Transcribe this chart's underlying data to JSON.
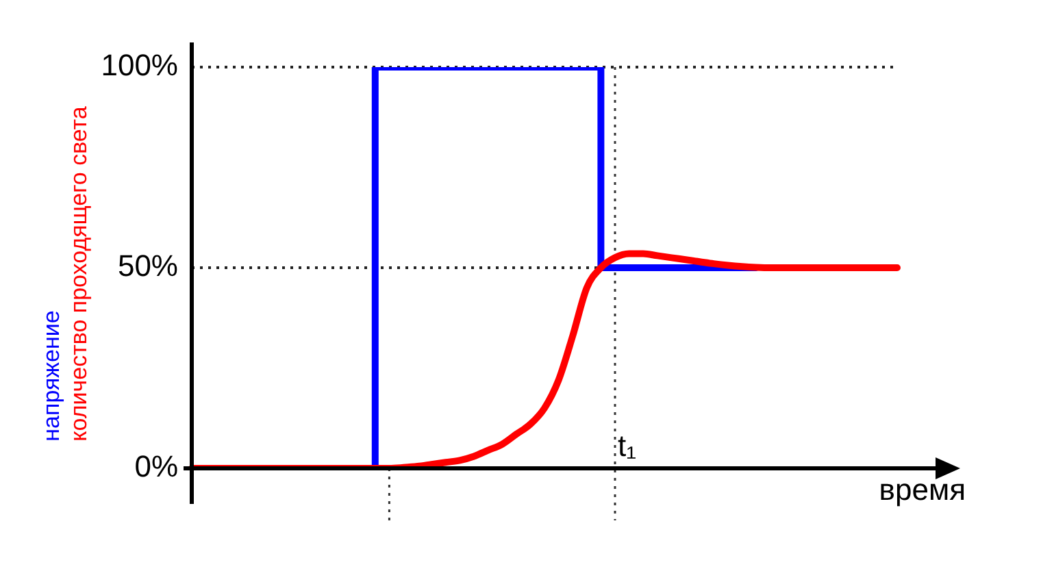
{
  "chart_data": {
    "type": "line",
    "annotations": [
      "время",
      "t₁"
    ],
    "categories": [
      null,
      null,
      null,
      null,
      null,
      null,
      null,
      null,
      null,
      null,
      null,
      null,
      null,
      null,
      null,
      null,
      null,
      null,
      null,
      null,
      null,
      null,
      null,
      null,
      null,
      null,
      null,
      null,
      null,
      null,
      null,
      null,
      null,
      null,
      null,
      null,
      null,
      null,
      null,
      null,
      null,
      null,
      null,
      null,
      null,
      null,
      null,
      null,
      null,
      null,
      null
    ],
    "series": [
      {
        "name": "напряжение",
        "type": "step",
        "color": "#0000ff",
        "values": [
          null,
          null,
          null,
          null,
          null,
          null,
          null,
          null,
          null,
          null,
          null,
          0,
          0,
          0,
          100,
          100,
          100,
          100,
          100,
          100,
          100,
          100,
          100,
          100,
          100,
          100,
          100,
          100,
          100,
          100,
          50,
          50,
          50,
          50,
          50,
          50,
          50,
          50,
          50,
          50,
          50,
          null,
          null,
          null,
          null,
          null,
          null,
          null,
          null,
          null,
          null
        ]
      },
      {
        "name": "количество проходящего света",
        "color": "#ff0000",
        "values": [
          0,
          0,
          0,
          0,
          0,
          0,
          0,
          0,
          0,
          0,
          0,
          0,
          0,
          0,
          0,
          0.2,
          0.5,
          1,
          1.5,
          2,
          3,
          4.5,
          6,
          8.5,
          11,
          15,
          22,
          33,
          45,
          50,
          52.5,
          53.5,
          53.5,
          53,
          52.5,
          52,
          51.5,
          51,
          50.6,
          50.3,
          50.1,
          50,
          50,
          50,
          50,
          50,
          50,
          50,
          50,
          50,
          50
        ]
      }
    ],
    "ylim": [
      0,
      100
    ],
    "yticks": [
      {
        "value": 0,
        "label": "0%"
      },
      {
        "value": 50,
        "label": "50%"
      },
      {
        "value": 100,
        "label": "100%"
      }
    ],
    "tick_labels": "y",
    "legend": "left",
    "ref_lines": [
      {
        "axis": "y",
        "value": 100,
        "label": null,
        "line_style": "dotted"
      },
      {
        "axis": "y",
        "value": 50,
        "label": null,
        "line_style": "dotted"
      }
    ]
  }
}
